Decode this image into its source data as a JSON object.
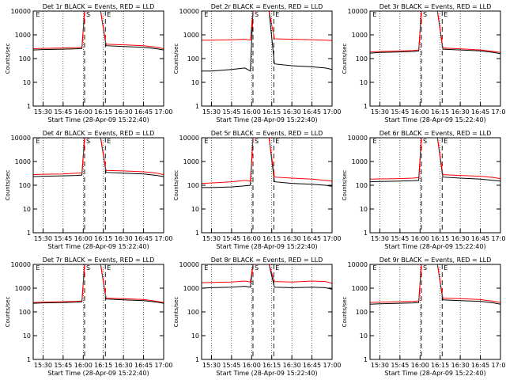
{
  "chart_data": [
    {
      "type": "line",
      "title": "Det 1r BLACK = Events, RED = LLD",
      "xlabel": "Start Time (28-Apr-09 15:22:40)",
      "ylabel": "Counts/sec",
      "yscale": "log",
      "ylim": [
        1,
        10000
      ],
      "xlim": [
        "15:22:40",
        "17:00"
      ],
      "x_ticks": [
        "15:30",
        "15:45",
        "16:00",
        "16:15",
        "16:30",
        "16:45",
        "17:00"
      ],
      "y_ticks": [
        "1",
        "10",
        "100",
        "1000",
        "10000"
      ],
      "markers": [
        "E",
        "S",
        "E"
      ],
      "series": [
        {
          "color": "#000000",
          "values": [
            230,
            240,
            250,
            260,
            270,
            10000,
            10000,
            350,
            320,
            300,
            260,
            230
          ]
        },
        {
          "color": "#ff0000",
          "values": [
            260,
            270,
            280,
            290,
            300,
            10000,
            10000,
            400,
            380,
            350,
            300,
            260
          ]
        }
      ]
    },
    {
      "type": "line",
      "title": "Det 2r BLACK = Events, RED = LLD",
      "xlabel": "Start Time (28-Apr-09 15:22:40)",
      "ylabel": "Counts/sec",
      "yscale": "log",
      "ylim": [
        1,
        10000
      ],
      "xlim": [
        "15:22:40",
        "17:00"
      ],
      "x_ticks": [
        "15:30",
        "15:45",
        "16:00",
        "16:15",
        "16:30",
        "16:45",
        "17:00"
      ],
      "y_ticks": [
        "1",
        "10",
        "100",
        "1000",
        "10000"
      ],
      "markers": [
        "E",
        "S",
        "E"
      ],
      "series": [
        {
          "color": "#000000",
          "values": [
            30,
            30,
            35,
            40,
            30,
            10000,
            10000,
            60,
            50,
            45,
            40,
            35
          ]
        },
        {
          "color": "#ff0000",
          "values": [
            600,
            600,
            620,
            650,
            600,
            10000,
            10000,
            680,
            650,
            620,
            600,
            580
          ]
        }
      ]
    },
    {
      "type": "line",
      "title": "Det 3r BLACK = Events, RED = LLD",
      "xlabel": "Start Time (28-Apr-09 15:22:40)",
      "ylabel": "Counts/sec",
      "yscale": "log",
      "ylim": [
        1,
        10000
      ],
      "xlim": [
        "15:22:40",
        "17:00"
      ],
      "x_ticks": [
        "15:30",
        "15:45",
        "16:00",
        "16:15",
        "16:30",
        "16:45",
        "17:00"
      ],
      "y_ticks": [
        "1",
        "10",
        "100",
        "1000",
        "10000"
      ],
      "markers": [
        "E",
        "S",
        "E"
      ],
      "series": [
        {
          "color": "#000000",
          "values": [
            170,
            180,
            190,
            200,
            210,
            10000,
            10000,
            250,
            230,
            210,
            180,
            160
          ]
        },
        {
          "color": "#ff0000",
          "values": [
            190,
            200,
            210,
            220,
            230,
            10000,
            10000,
            280,
            260,
            230,
            200,
            180
          ]
        }
      ]
    },
    {
      "type": "line",
      "title": "Det 4r BLACK = Events, RED = LLD",
      "xlabel": "Start Time (28-Apr-09 15:22:40)",
      "ylabel": "Counts/sec",
      "yscale": "log",
      "ylim": [
        1,
        10000
      ],
      "xlim": [
        "15:22:40",
        "17:00"
      ],
      "x_ticks": [
        "15:30",
        "15:45",
        "16:00",
        "16:15",
        "16:30",
        "16:45",
        "17:00"
      ],
      "y_ticks": [
        "1",
        "10",
        "100",
        "1000",
        "10000"
      ],
      "markers": [
        "E",
        "S",
        "E"
      ],
      "series": [
        {
          "color": "#000000",
          "values": [
            230,
            240,
            250,
            260,
            270,
            10000,
            10000,
            350,
            320,
            300,
            260,
            230
          ]
        },
        {
          "color": "#ff0000",
          "values": [
            280,
            290,
            300,
            320,
            330,
            10000,
            10000,
            420,
            400,
            370,
            320,
            280
          ]
        }
      ]
    },
    {
      "type": "line",
      "title": "Det 5r BLACK = Events, RED = LLD",
      "xlabel": "Start Time (28-Apr-09 15:22:40)",
      "ylabel": "Counts/sec",
      "yscale": "log",
      "ylim": [
        1,
        10000
      ],
      "xlim": [
        "15:22:40",
        "17:00"
      ],
      "x_ticks": [
        "15:30",
        "15:45",
        "16:00",
        "16:15",
        "16:30",
        "16:45",
        "17:00"
      ],
      "y_ticks": [
        "1",
        "10",
        "100",
        "1000",
        "10000"
      ],
      "markers": [
        "E",
        "S",
        "E"
      ],
      "series": [
        {
          "color": "#000000",
          "values": [
            80,
            80,
            85,
            95,
            100,
            10000,
            10000,
            140,
            120,
            110,
            100,
            90
          ]
        },
        {
          "color": "#ff0000",
          "values": [
            120,
            125,
            140,
            160,
            150,
            10000,
            10000,
            220,
            200,
            180,
            160,
            150
          ]
        }
      ]
    },
    {
      "type": "line",
      "title": "Det 6r BLACK = Events, RED = LLD",
      "xlabel": "Start Time (28-Apr-09 15:22:40)",
      "ylabel": "Counts/sec",
      "yscale": "log",
      "ylim": [
        1,
        10000
      ],
      "xlim": [
        "15:22:40",
        "17:00"
      ],
      "x_ticks": [
        "15:30",
        "15:45",
        "16:00",
        "16:15",
        "16:30",
        "16:45",
        "17:00"
      ],
      "y_ticks": [
        "1",
        "10",
        "100",
        "1000",
        "10000"
      ],
      "markers": [
        "E",
        "S",
        "E"
      ],
      "series": [
        {
          "color": "#000000",
          "values": [
            140,
            145,
            150,
            155,
            160,
            10000,
            10000,
            220,
            200,
            180,
            160,
            150
          ]
        },
        {
          "color": "#ff0000",
          "values": [
            180,
            185,
            190,
            200,
            210,
            10000,
            10000,
            280,
            260,
            240,
            210,
            190
          ]
        }
      ]
    },
    {
      "type": "line",
      "title": "Det 7r BLACK = Events, RED = LLD",
      "xlabel": "Start Time (28-Apr-09 15:22:40)",
      "ylabel": "Counts/sec",
      "yscale": "log",
      "ylim": [
        1,
        10000
      ],
      "xlim": [
        "15:22:40",
        "17:00"
      ],
      "x_ticks": [
        "15:30",
        "15:45",
        "16:00",
        "16:15",
        "16:30",
        "16:45",
        "17:00"
      ],
      "y_ticks": [
        "1",
        "10",
        "100",
        "1000",
        "10000"
      ],
      "markers": [
        "E",
        "S",
        "E"
      ],
      "series": [
        {
          "color": "#000000",
          "values": [
            230,
            240,
            250,
            260,
            270,
            10000,
            10000,
            350,
            320,
            300,
            260,
            230
          ]
        },
        {
          "color": "#ff0000",
          "values": [
            250,
            260,
            270,
            280,
            290,
            10000,
            10000,
            380,
            360,
            330,
            280,
            250
          ]
        }
      ]
    },
    {
      "type": "line",
      "title": "Det 8r BLACK = Events, RED = LLD",
      "xlabel": "Start Time (28-Apr-09 15:22:40)",
      "ylabel": "Counts/sec",
      "yscale": "log",
      "ylim": [
        1,
        10000
      ],
      "xlim": [
        "15:22:40",
        "17:00"
      ],
      "x_ticks": [
        "15:30",
        "15:45",
        "16:00",
        "16:15",
        "16:30",
        "16:45",
        "17:00"
      ],
      "y_ticks": [
        "1",
        "10",
        "100",
        "1000",
        "10000"
      ],
      "markers": [
        "E",
        "S",
        "E"
      ],
      "series": [
        {
          "color": "#000000",
          "values": [
            1000,
            1050,
            1100,
            1200,
            1100,
            10000,
            10000,
            1100,
            1050,
            1100,
            1050,
            900
          ]
        },
        {
          "color": "#ff0000",
          "values": [
            1700,
            1750,
            1800,
            2000,
            1800,
            10000,
            10000,
            1900,
            1800,
            2000,
            1900,
            1600
          ]
        }
      ]
    },
    {
      "type": "line",
      "title": "Det 9r BLACK = Events, RED = LLD",
      "xlabel": "Start Time (28-Apr-09 15:22:40)",
      "ylabel": "Counts/sec",
      "yscale": "log",
      "ylim": [
        1,
        10000
      ],
      "xlim": [
        "15:22:40",
        "17:00"
      ],
      "x_ticks": [
        "15:30",
        "15:45",
        "16:00",
        "16:15",
        "16:30",
        "16:45",
        "17:00"
      ],
      "y_ticks": [
        "1",
        "10",
        "100",
        "1000",
        "10000"
      ],
      "markers": [
        "E",
        "S",
        "E"
      ],
      "series": [
        {
          "color": "#000000",
          "values": [
            210,
            220,
            230,
            240,
            250,
            10000,
            10000,
            320,
            300,
            280,
            240,
            210
          ]
        },
        {
          "color": "#ff0000",
          "values": [
            250,
            260,
            270,
            280,
            290,
            10000,
            10000,
            380,
            360,
            330,
            280,
            250
          ]
        }
      ]
    }
  ]
}
